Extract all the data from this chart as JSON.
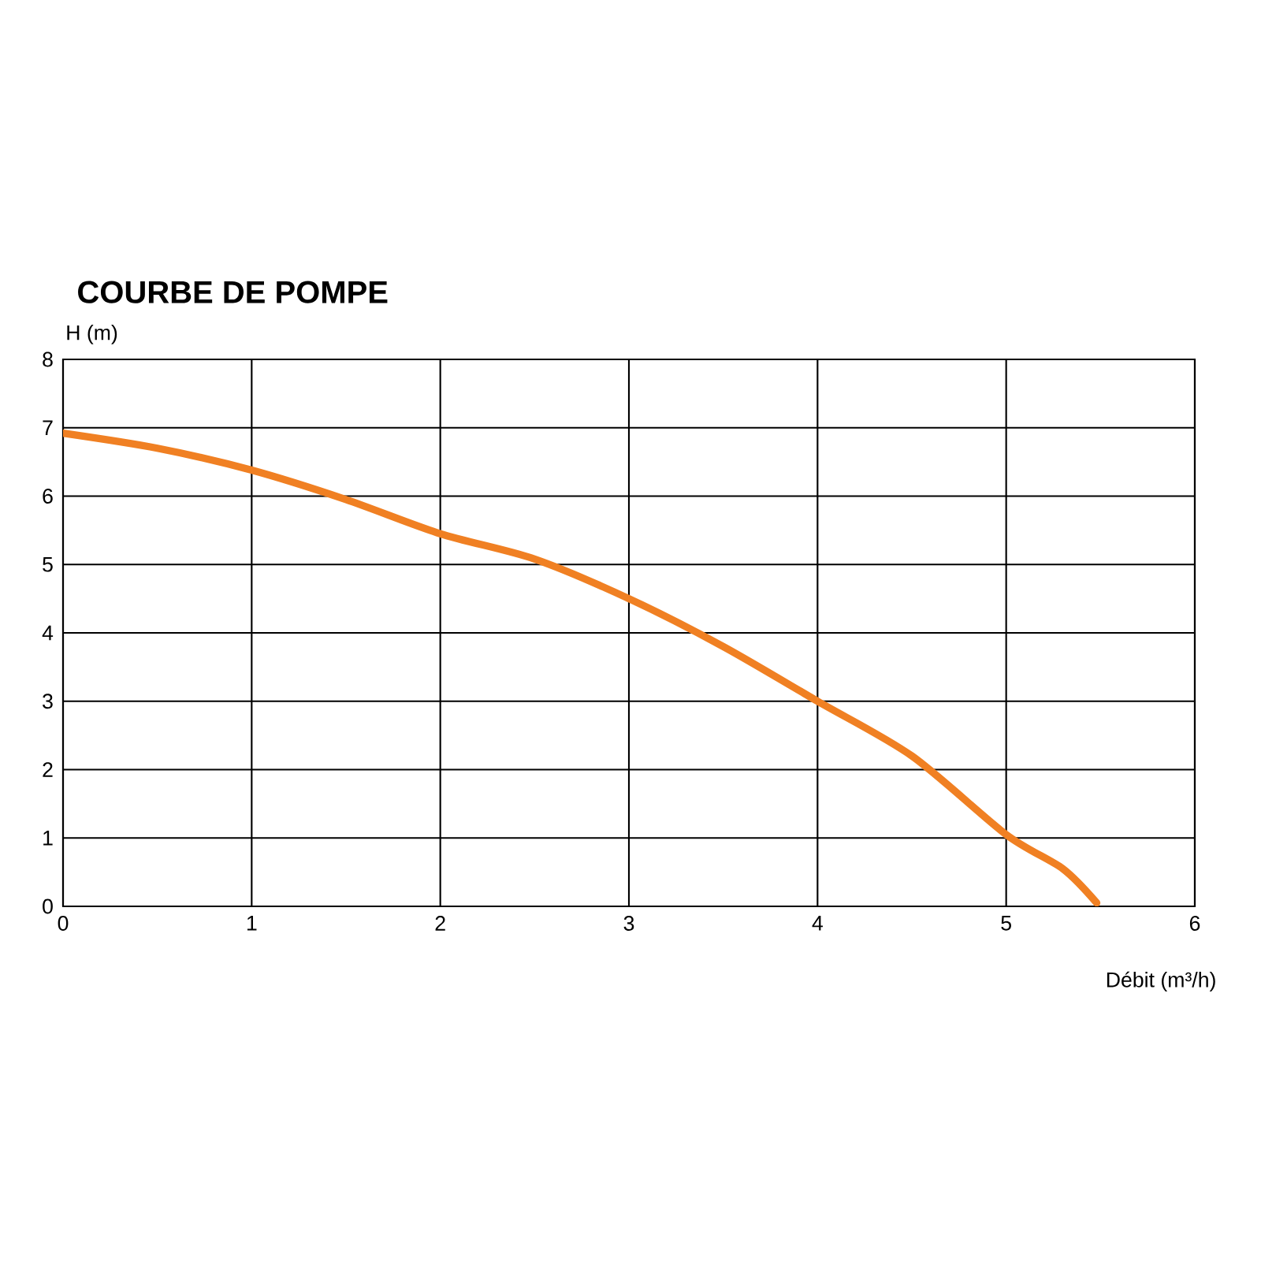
{
  "chart_data": {
    "type": "line",
    "title": "COURBE DE POMPE",
    "xlabel": "Débit (m³/h)",
    "ylabel": "H (m)",
    "x": [
      0,
      0.5,
      1,
      1.5,
      2,
      2.5,
      3,
      3.5,
      4,
      4.5,
      5,
      5.3,
      5.48
    ],
    "series": [
      {
        "color": "#f08023",
        "values": [
          6.92,
          6.7,
          6.38,
          5.95,
          5.45,
          5.08,
          4.5,
          3.8,
          3.0,
          2.2,
          1.05,
          0.55,
          0.05
        ]
      }
    ],
    "xlim": [
      0,
      6
    ],
    "ylim": [
      0,
      8
    ],
    "xticks": [
      0,
      1,
      2,
      3,
      4,
      5,
      6
    ],
    "yticks": [
      0,
      1,
      2,
      3,
      4,
      5,
      6,
      7,
      8
    ],
    "grid": true,
    "marker": "none",
    "line_style": "solid"
  }
}
